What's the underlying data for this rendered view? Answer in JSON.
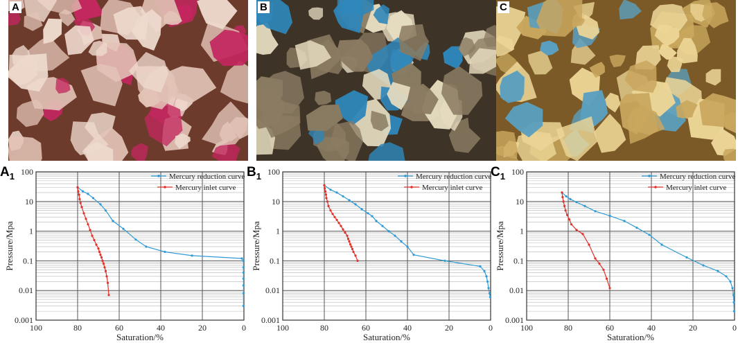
{
  "panels": [
    {
      "label": "A",
      "colors": {
        "base": "#e2c3b6",
        "pore": "#c3275f",
        "grain": "#eed9cd",
        "dark": "#6d3b2c"
      }
    },
    {
      "label": "B",
      "colors": {
        "base": "#8a7b62",
        "pore": "#2f86b9",
        "grain": "#e6dcc0",
        "dark": "#3d3326"
      }
    },
    {
      "label": "C",
      "colors": {
        "base": "#c9a75e",
        "pore": "#5a9fbf",
        "grain": "#ecd596",
        "dark": "#7b5a27"
      }
    }
  ],
  "chart_data": [
    {
      "type": "line",
      "panel_label": "A",
      "panel_sub": "1",
      "xlabel": "Saturation/%",
      "ylabel": "Pressure/Mpa",
      "x_reversed": true,
      "xlim": [
        100,
        0
      ],
      "ylim": [
        0.001,
        100
      ],
      "y_scale": "log",
      "x_ticks": [
        "100",
        "80",
        "60",
        "40",
        "20",
        "0"
      ],
      "y_ticks": [
        "0.001",
        "0.01",
        "0.1",
        "1",
        "10",
        "100"
      ],
      "legend_position": "top-right",
      "series": [
        {
          "name": "Mercury reduction curve",
          "color": "#2f9bd6",
          "x": [
            80,
            77.5,
            75,
            72.5,
            69,
            66.5,
            63,
            58,
            52,
            47,
            38,
            25,
            1,
            0.2,
            0.2,
            0.2,
            0.2,
            0.2,
            0.2,
            0.2
          ],
          "y": [
            30,
            22,
            18,
            13,
            8,
            5,
            2.2,
            1.2,
            0.52,
            0.3,
            0.2,
            0.15,
            0.12,
            0.1,
            0.06,
            0.04,
            0.025,
            0.015,
            0.008,
            0.003
          ]
        },
        {
          "name": "Mercury inlet curve",
          "color": "#e0322b",
          "x": [
            80,
            79.7,
            79.3,
            79,
            78.6,
            78,
            77,
            76,
            75,
            74,
            73,
            72,
            71,
            70,
            69.5,
            69,
            68.5,
            68,
            67.5,
            67,
            66.5,
            66,
            65.5,
            65
          ],
          "y": [
            30,
            22,
            17,
            12,
            9,
            6.5,
            4,
            2.6,
            1.7,
            1.1,
            0.7,
            0.5,
            0.35,
            0.26,
            0.2,
            0.16,
            0.13,
            0.1,
            0.08,
            0.06,
            0.045,
            0.03,
            0.018,
            0.007
          ]
        }
      ]
    },
    {
      "type": "line",
      "panel_label": "B",
      "panel_sub": "1",
      "xlabel": "Saturation/%",
      "ylabel": "Pressure/Mpa",
      "x_reversed": true,
      "xlim": [
        100,
        0
      ],
      "ylim": [
        0.001,
        100
      ],
      "y_scale": "log",
      "x_ticks": [
        "100",
        "80",
        "60",
        "40",
        "20",
        "0"
      ],
      "y_ticks": [
        "0.001",
        "0.01",
        "0.1",
        "1",
        "10",
        "100"
      ],
      "legend_position": "top-right",
      "series": [
        {
          "name": "Mercury reduction curve",
          "color": "#2f9bd6",
          "x": [
            80,
            77,
            74,
            71,
            68,
            65,
            62,
            59,
            57,
            55,
            52,
            49,
            46,
            43,
            40,
            37,
            22,
            5,
            3,
            2,
            1.5,
            1,
            0.5,
            0.2
          ],
          "y": [
            35,
            25,
            20,
            15,
            11,
            8,
            5.5,
            4,
            3.2,
            2.2,
            1.5,
            1,
            0.7,
            0.45,
            0.3,
            0.16,
            0.1,
            0.065,
            0.045,
            0.03,
            0.02,
            0.012,
            0.008,
            0.006
          ]
        },
        {
          "name": "Mercury inlet curve",
          "color": "#e0322b",
          "x": [
            80,
            79.8,
            79.5,
            79.2,
            79,
            78.5,
            78,
            77,
            76,
            75,
            74,
            73,
            72,
            71,
            70,
            69,
            68.5,
            68,
            67.5,
            67,
            66.5,
            66,
            65,
            64
          ],
          "y": [
            35,
            28,
            22,
            17,
            13,
            10,
            7,
            5,
            3.8,
            3,
            2.4,
            1.9,
            1.5,
            1.15,
            0.9,
            0.7,
            0.55,
            0.45,
            0.36,
            0.3,
            0.25,
            0.2,
            0.15,
            0.1
          ]
        }
      ]
    },
    {
      "type": "line",
      "panel_label": "C",
      "panel_sub": "1",
      "xlabel": "Saturation/%",
      "ylabel": "Pressure/Mpa",
      "x_reversed": true,
      "xlim": [
        100,
        0
      ],
      "ylim": [
        0.001,
        100
      ],
      "y_scale": "log",
      "x_ticks": [
        "100",
        "80",
        "60",
        "40",
        "20",
        "0"
      ],
      "y_ticks": [
        "0.001",
        "0.01",
        "0.1",
        "1",
        "10",
        "100"
      ],
      "legend_position": "top-right",
      "series": [
        {
          "name": "Mercury reduction curve",
          "color": "#2f9bd6",
          "x": [
            83,
            81,
            79,
            76,
            72,
            67,
            60,
            53,
            47,
            41,
            35,
            23,
            15,
            8,
            4,
            2,
            1,
            0.5,
            0.3,
            0.2
          ],
          "y": [
            20,
            15,
            12,
            9.5,
            7,
            4.7,
            3.3,
            2.2,
            1.3,
            0.75,
            0.35,
            0.13,
            0.07,
            0.045,
            0.03,
            0.02,
            0.012,
            0.007,
            0.004,
            0.002
          ]
        },
        {
          "name": "Mercury inlet curve",
          "color": "#e0322b",
          "x": [
            83,
            82.7,
            82.3,
            81.8,
            81.3,
            80.5,
            79.5,
            78.5,
            76,
            73,
            70,
            67,
            65,
            63,
            61.5,
            60
          ],
          "y": [
            20,
            14,
            10,
            7,
            5,
            3.5,
            2.5,
            1.7,
            1.1,
            0.8,
            0.35,
            0.12,
            0.08,
            0.05,
            0.025,
            0.012
          ]
        }
      ]
    }
  ]
}
